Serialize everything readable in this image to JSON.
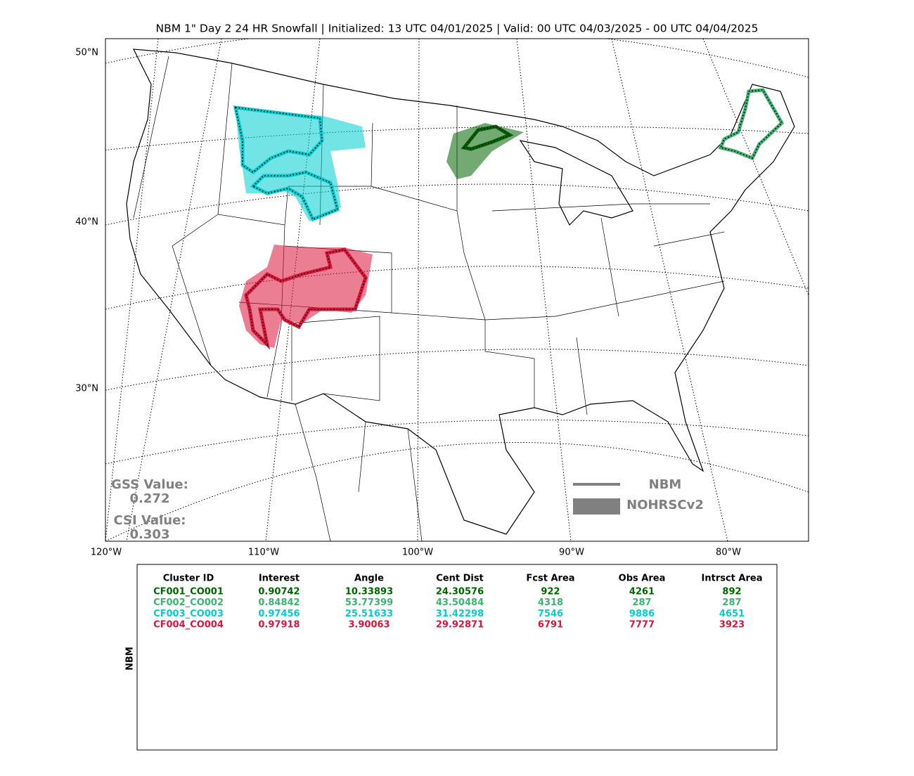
{
  "title": "NBM 1\" Day 2 24 HR Snowfall | Initialized: 13 UTC 04/01/2025 | Valid: 00 UTC 04/03/2025 - 00 UTC 04/04/2025",
  "map": {
    "lat_labels": [
      "50°N",
      "40°N",
      "30°N"
    ],
    "lon_labels": [
      "120°W",
      "110°W",
      "100°W",
      "90°W",
      "80°W"
    ],
    "scores": {
      "gss_label": "GSS Value:",
      "gss_value": "0.272",
      "csi_label": "CSI Value:",
      "csi_value": "0.303"
    },
    "legend": {
      "line_label": "NBM",
      "area_label": "NOHRSCv2",
      "color": "#808080"
    }
  },
  "table": {
    "side_label": "NBM",
    "columns": [
      "Cluster ID",
      "Interest",
      "Angle",
      "Cent Dist",
      "Fcst Area",
      "Obs Area",
      "Intrsct Area"
    ],
    "rows": [
      {
        "color": "#006400",
        "cells": [
          "CF001_CO001",
          "0.90742",
          "10.33893",
          "24.30576",
          "922",
          "4261",
          "892"
        ]
      },
      {
        "color": "#3cb371",
        "cells": [
          "CF002_CO002",
          "0.84842",
          "53.77399",
          "43.50484",
          "4318",
          "287",
          "287"
        ]
      },
      {
        "color": "#00ced1",
        "cells": [
          "CF003_CO003",
          "0.97456",
          "25.51633",
          "31.42298",
          "7546",
          "9886",
          "4651"
        ]
      },
      {
        "color": "#dc143c",
        "cells": [
          "CF004_CO004",
          "0.97918",
          "3.90063",
          "29.92871",
          "6791",
          "7777",
          "3923"
        ]
      }
    ]
  }
}
